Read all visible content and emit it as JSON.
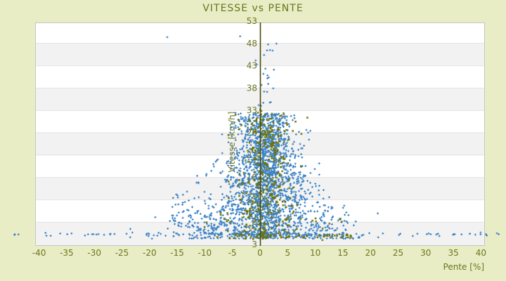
{
  "title": "VITESSE vs PENTE",
  "colors": {
    "background": "#e9edc6",
    "title_text": "#6d741c",
    "tick_text": "#6d741c",
    "axis_line": "#454c04",
    "stripe_light": "#ffffff",
    "stripe_dark": "#f2f2f2",
    "gridline": "#e2e2e2",
    "plot_border": "#c6c6c6",
    "series_blue": "#3c82c5",
    "series_olive": "#6e7200"
  },
  "chart_data": {
    "type": "scatter",
    "title": "VITESSE vs PENTE",
    "xlabel": "Pente [%]",
    "ylabel": "Vitesse [km/h]",
    "xlim": [
      -40.7,
      40.7
    ],
    "ylim": [
      2.7,
      53.3
    ],
    "x_ticks": [
      -40,
      -35,
      -30,
      -25,
      -20,
      -15,
      -10,
      -5,
      0,
      5,
      10,
      15,
      20,
      25,
      30,
      35,
      40
    ],
    "y_ticks": [
      3,
      8,
      13,
      18,
      23,
      28,
      33,
      38,
      43,
      48,
      53
    ],
    "grid": "horizontal-stripes-every-5-units",
    "legend": "none",
    "zero_axis_line": true,
    "marker_size_px": 3,
    "seed": 7,
    "series": [
      {
        "name": "vitesse-bleu",
        "color": "#3c82c5",
        "marker": "plus",
        "approx_count": 2450,
        "generation": {
          "core": {
            "n": 1750,
            "v_min": 4.3,
            "v_span": 28.2,
            "v_power": 1.3,
            "x_shift": 1.3,
            "x_sigma_factor": 0.42,
            "width_base": 1.5,
            "width_scale": 160,
            "width_voffset": 3
          },
          "axis_strip": {
            "n": 320,
            "x_min": -0.8,
            "x_max": 3.0,
            "v_min": 4.5,
            "v_span": 24.0,
            "v_power": 1.1
          },
          "high_column": {
            "n": 22,
            "x_shift": 0.7,
            "x_sigma": 1.1,
            "v_min": 33.0,
            "v_span": 15.0
          },
          "arcs_left": {
            "ks": [
              26,
              38,
              52,
              68,
              88,
              115,
              150
            ],
            "per_arc": 24,
            "v_base": 4.4,
            "v_jitter": 0.3
          },
          "arcs_right": {
            "ks": [
              30,
              60,
              95
            ],
            "per_arc": 20,
            "v_base": 4.4,
            "v_jitter": 0.3
          },
          "bottom_row_wide": {
            "n": 55,
            "x_min": -44.5,
            "x_max": 43.5,
            "v_center": 5.25,
            "v_jitter": 0.2
          },
          "bottom_row_mid": {
            "n": 85,
            "x_halfwidth": 20,
            "v_center": 5.3,
            "v_jitter": 0.2
          }
        },
        "outlier_points": [
          [
            -16.8,
            49.4
          ],
          [
            -3.6,
            49.6
          ],
          [
            -0.6,
            43.3
          ],
          [
            1.8,
            46.5
          ],
          [
            -44.4,
            5.3
          ],
          [
            40.9,
            5.3
          ],
          [
            43.2,
            5.3
          ],
          [
            38.0,
            5.4
          ],
          [
            35.1,
            5.3
          ],
          [
            30.2,
            5.3
          ],
          [
            25.4,
            5.4
          ],
          [
            -34.9,
            5.3
          ],
          [
            -30.4,
            5.3
          ],
          [
            -27.1,
            5.4
          ]
        ]
      },
      {
        "name": "vitesse-olive",
        "color": "#6e7200",
        "marker": "x",
        "approx_count": 450,
        "generation": {
          "core": {
            "n": 340,
            "v_min": 4.2,
            "v_span": 27.0,
            "v_power": 1.15,
            "x_shift": 1.2,
            "x_sigma_factor": 0.36,
            "width_base": 1.2,
            "width_scale": 120,
            "width_voffset": 3
          },
          "top_band": {
            "n": 40,
            "v_min": 27.5,
            "v_span": 6.0,
            "x_shift": 1.5,
            "x_sigma": 3.4
          },
          "bottom_row": {
            "n": 50,
            "x_min": -6.0,
            "x_max": 17.0,
            "v_center": 4.9,
            "v_jitter": 0.25
          }
        },
        "outlier_points": [
          [
            14.4,
            8.7
          ],
          [
            14.8,
            8.1
          ]
        ]
      }
    ]
  }
}
